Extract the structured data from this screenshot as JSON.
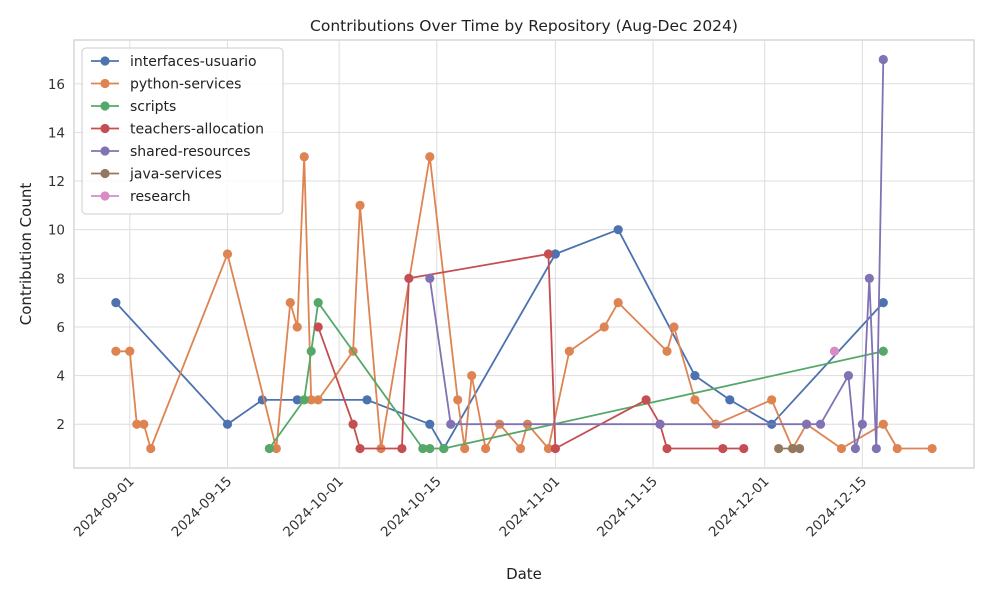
{
  "chart_data": {
    "type": "line",
    "title": "Contributions Over Time by Repository (Aug-Dec 2024)",
    "xlabel": "Date",
    "ylabel": "Contribution Count",
    "x_ticks": [
      "2024-09-01",
      "2024-09-15",
      "2024-10-01",
      "2024-10-15",
      "2024-11-01",
      "2024-11-15",
      "2024-12-01",
      "2024-12-15"
    ],
    "y_ticks": [
      2,
      4,
      6,
      8,
      10,
      12,
      14,
      16
    ],
    "xlim": [
      "2024-08-24",
      "2024-12-31"
    ],
    "ylim": [
      0.2,
      17.8
    ],
    "grid": true,
    "legend_position": "top-left",
    "series": [
      {
        "name": "interfaces-usuario",
        "color": "#4C72B0",
        "points": [
          [
            "2024-08-30",
            7
          ],
          [
            "2024-09-15",
            2
          ],
          [
            "2024-09-20",
            3
          ],
          [
            "2024-09-25",
            3
          ],
          [
            "2024-10-05",
            3
          ],
          [
            "2024-10-14",
            2
          ],
          [
            "2024-10-16",
            1
          ],
          [
            "2024-11-01",
            9
          ],
          [
            "2024-11-10",
            10
          ],
          [
            "2024-11-21",
            4
          ],
          [
            "2024-11-26",
            3
          ],
          [
            "2024-12-02",
            2
          ],
          [
            "2024-12-18",
            7
          ]
        ]
      },
      {
        "name": "python-services",
        "color": "#DD8452",
        "points": [
          [
            "2024-08-30",
            5
          ],
          [
            "2024-09-01",
            5
          ],
          [
            "2024-09-02",
            2
          ],
          [
            "2024-09-03",
            2
          ],
          [
            "2024-09-04",
            1
          ],
          [
            "2024-09-15",
            9
          ],
          [
            "2024-09-22",
            1
          ],
          [
            "2024-09-24",
            7
          ],
          [
            "2024-09-25",
            6
          ],
          [
            "2024-09-26",
            13
          ],
          [
            "2024-09-27",
            3
          ],
          [
            "2024-09-28",
            3
          ],
          [
            "2024-10-03",
            5
          ],
          [
            "2024-10-04",
            11
          ],
          [
            "2024-10-07",
            1
          ],
          [
            "2024-10-14",
            13
          ],
          [
            "2024-10-18",
            3
          ],
          [
            "2024-10-19",
            1
          ],
          [
            "2024-10-20",
            4
          ],
          [
            "2024-10-22",
            1
          ],
          [
            "2024-10-24",
            2
          ],
          [
            "2024-10-27",
            1
          ],
          [
            "2024-10-28",
            2
          ],
          [
            "2024-10-31",
            1
          ],
          [
            "2024-11-03",
            5
          ],
          [
            "2024-11-08",
            6
          ],
          [
            "2024-11-10",
            7
          ],
          [
            "2024-11-17",
            5
          ],
          [
            "2024-11-18",
            6
          ],
          [
            "2024-11-21",
            3
          ],
          [
            "2024-11-24",
            2
          ],
          [
            "2024-12-02",
            3
          ],
          [
            "2024-12-05",
            1
          ],
          [
            "2024-12-07",
            2
          ],
          [
            "2024-12-12",
            1
          ],
          [
            "2024-12-18",
            2
          ],
          [
            "2024-12-20",
            1
          ],
          [
            "2024-12-25",
            1
          ]
        ]
      },
      {
        "name": "scripts",
        "color": "#55A868",
        "points": [
          [
            "2024-09-21",
            1
          ],
          [
            "2024-09-26",
            3
          ],
          [
            "2024-09-27",
            5
          ],
          [
            "2024-09-28",
            7
          ],
          [
            "2024-10-13",
            1
          ],
          [
            "2024-10-14",
            1
          ],
          [
            "2024-10-16",
            1
          ],
          [
            "2024-12-18",
            5
          ]
        ]
      },
      {
        "name": "teachers-allocation",
        "color": "#C44E52",
        "points": [
          [
            "2024-09-28",
            6
          ],
          [
            "2024-10-03",
            2
          ],
          [
            "2024-10-04",
            1
          ],
          [
            "2024-10-10",
            1
          ],
          [
            "2024-10-11",
            8
          ],
          [
            "2024-10-31",
            9
          ],
          [
            "2024-11-01",
            1
          ],
          [
            "2024-11-14",
            3
          ],
          [
            "2024-11-16",
            2
          ],
          [
            "2024-11-17",
            1
          ],
          [
            "2024-11-25",
            1
          ],
          [
            "2024-11-28",
            1
          ]
        ]
      },
      {
        "name": "shared-resources",
        "color": "#8172B3",
        "points": [
          [
            "2024-10-14",
            8
          ],
          [
            "2024-10-17",
            2
          ],
          [
            "2024-11-16",
            2
          ],
          [
            "2024-12-07",
            2
          ],
          [
            "2024-12-09",
            2
          ],
          [
            "2024-12-13",
            4
          ],
          [
            "2024-12-14",
            1
          ],
          [
            "2024-12-15",
            2
          ],
          [
            "2024-12-16",
            8
          ],
          [
            "2024-12-17",
            1
          ],
          [
            "2024-12-18",
            17
          ]
        ]
      },
      {
        "name": "java-services",
        "color": "#937860",
        "points": [
          [
            "2024-12-03",
            1
          ],
          [
            "2024-12-05",
            1
          ],
          [
            "2024-12-06",
            1
          ]
        ]
      },
      {
        "name": "research",
        "color": "#DA8BC3",
        "points": [
          [
            "2024-12-11",
            5
          ]
        ]
      }
    ]
  }
}
